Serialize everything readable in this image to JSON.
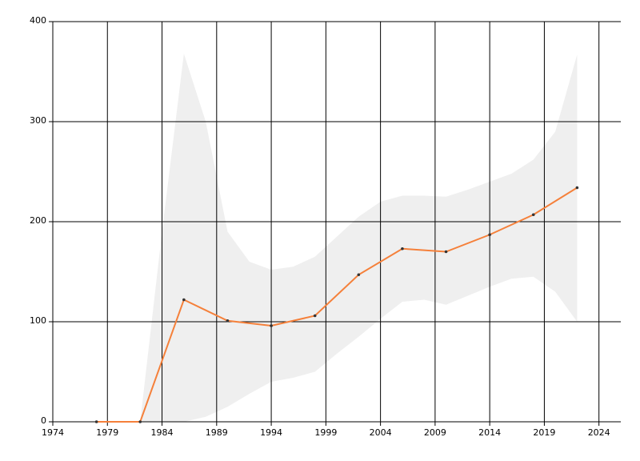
{
  "chart_data": {
    "type": "line",
    "x": [
      1978,
      1982,
      1986,
      1990,
      1994,
      1998,
      2002,
      2006,
      2010,
      2014,
      2018,
      2022
    ],
    "series": [
      {
        "color": "#f5803a",
        "values": [
          0,
          0,
          122,
          101,
          96,
          106,
          147,
          173,
          170,
          187,
          207,
          234
        ]
      }
    ],
    "band": {
      "color": "#efefef",
      "x": [
        1982,
        1984,
        1986,
        1988,
        1990,
        1992,
        1994,
        1996,
        1998,
        2000,
        2002,
        2004,
        2006,
        2008,
        2010,
        2012,
        2014,
        2016,
        2018,
        2020,
        2022
      ],
      "upper": [
        0,
        190,
        368,
        300,
        190,
        160,
        152,
        155,
        165,
        185,
        205,
        220,
        226,
        226,
        225,
        232,
        240,
        248,
        262,
        290,
        367
      ],
      "lower": [
        0,
        0,
        0,
        5,
        15,
        28,
        40,
        44,
        50,
        68,
        85,
        103,
        120,
        122,
        117,
        126,
        135,
        143,
        145,
        130,
        100
      ]
    },
    "xlim": [
      1974,
      2026
    ],
    "ylim": [
      0,
      400
    ],
    "xticks": [
      1974,
      1979,
      1984,
      1989,
      1994,
      1999,
      2004,
      2009,
      2014,
      2019,
      2024
    ],
    "yticks": [
      0,
      100,
      200,
      300,
      400
    ],
    "grid": true
  }
}
